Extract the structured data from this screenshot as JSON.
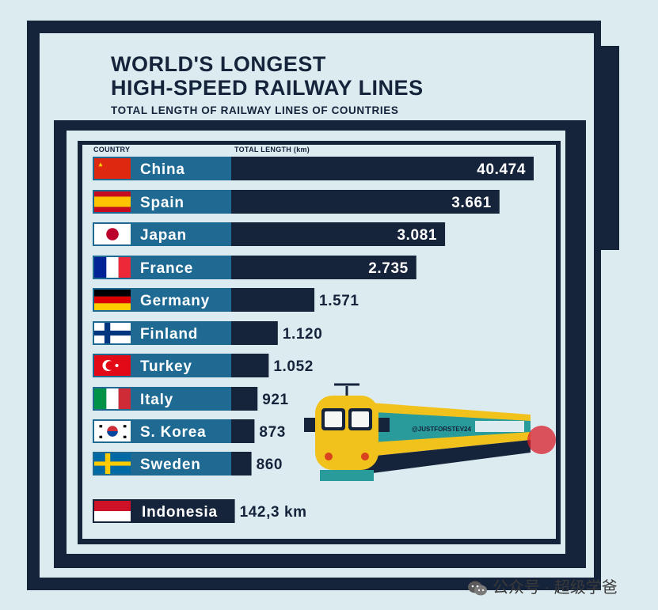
{
  "title_line1": "WORLD'S LONGEST",
  "title_line2": "HIGH-SPEED RAILWAY LINES",
  "subtitle": "TOTAL LENGTH OF RAILWAY LINES OF COUNTRIES",
  "column_headers": {
    "country": "COUNTRY",
    "length": "TOTAL LENGTH (km)"
  },
  "train_label": "@JUSTFORSTEV24",
  "watermark": "公众号 · 超级学爸",
  "colors": {
    "navy": "#15233b",
    "label_blue": "#1f6a93",
    "background": "#dcebf0",
    "train_yellow": "#f2c21c",
    "train_teal": "#2a9b9b"
  },
  "chart_data": {
    "type": "bar",
    "orientation": "horizontal",
    "title": "WORLD'S LONGEST HIGH-SPEED RAILWAY LINES",
    "subtitle": "TOTAL LENGTH OF RAILWAY LINES OF COUNTRIES",
    "xlabel": "TOTAL LENGTH (km)",
    "ylabel": "COUNTRY",
    "categories": [
      "China",
      "Spain",
      "Japan",
      "France",
      "Germany",
      "Finland",
      "Turkey",
      "Italy",
      "S. Korea",
      "Sweden",
      "Indonesia"
    ],
    "flags": [
      "china",
      "spain",
      "japan",
      "france",
      "germany",
      "finland",
      "turkey",
      "italy",
      "south-korea",
      "sweden",
      "indonesia"
    ],
    "values": [
      40474,
      3661,
      3081,
      2735,
      1571,
      1120,
      1052,
      921,
      873,
      860,
      142.3
    ],
    "value_labels": [
      "40.474",
      "3.661",
      "3.081",
      "2.735",
      "1.571",
      "1.120",
      "1.052",
      "921",
      "873",
      "860",
      "142,3 km"
    ],
    "bars": [
      {
        "fill": 1.0
      },
      {
        "fill": 0.887
      },
      {
        "fill": 0.707
      },
      {
        "fill": 0.612
      },
      {
        "fill": 0.275
      },
      {
        "fill": 0.154
      },
      {
        "fill": 0.124
      },
      {
        "fill": 0.087
      },
      {
        "fill": 0.077
      },
      {
        "fill": 0.067
      },
      {
        "fill": 0.012
      }
    ],
    "legend": "none",
    "grid": false
  }
}
